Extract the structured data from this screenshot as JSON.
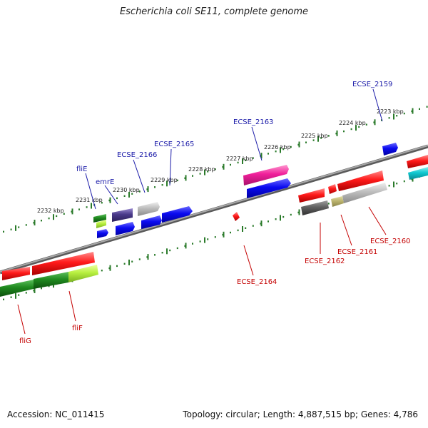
{
  "title": "Escherichia coli SE11, complete genome",
  "footer": {
    "accession": "Accession: NC_011415",
    "topology": "Topology: circular; Length: 4,887,515 bp; Genes: 4,786"
  },
  "colors": {
    "forward_label": "#1a1aa8",
    "reverse_label": "#c40000",
    "scale_ticks": "#2a7a2a",
    "backbone": "#808080"
  },
  "scale_labels": [
    "2232 kbp",
    "2231 kbp",
    "2230 kbp",
    "2229 kbp",
    "2228 kbp",
    "2227 kbp",
    "2226 kbp",
    "2225 kbp",
    "2224 kbp",
    "2223 kbp"
  ],
  "forward_genes": [
    "fliE",
    "emrE",
    "ECSE_2166",
    "ECSE_2165",
    "ECSE_2163",
    "ECSE_2159"
  ],
  "reverse_genes": [
    "fliG",
    "fliF",
    "ECSE_2164",
    "ECSE_2162",
    "ECSE_2161",
    "ECSE_2160"
  ]
}
